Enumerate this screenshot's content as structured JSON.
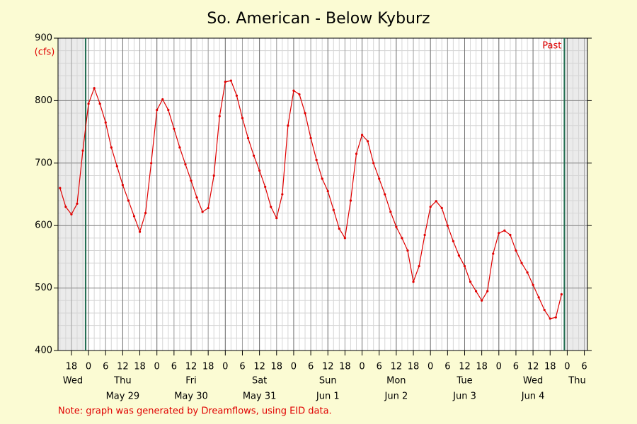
{
  "chart_data": {
    "type": "line",
    "title": "So. American - Below Kyburz",
    "y_unit": "(cfs)",
    "note": "Note: graph was generated by Dreamflows, using EID data.",
    "marker_label": "Past",
    "markers": [
      -1,
      167
    ],
    "color": "#e00000",
    "marker_color": "#1e6b4e",
    "grid": true,
    "x_minor_step": 2,
    "y_minor_step": 20,
    "xlim": [
      -10.7,
      175.1
    ],
    "ylim": [
      400,
      900
    ],
    "yticks": [
      400,
      500,
      600,
      700,
      800,
      900
    ],
    "xticks": [
      {
        "value": -6,
        "label": "18"
      },
      {
        "value": 0,
        "label": "0"
      },
      {
        "value": 6,
        "label": "6"
      },
      {
        "value": 12,
        "label": "12"
      },
      {
        "value": 18,
        "label": "18"
      },
      {
        "value": 24,
        "label": "0"
      },
      {
        "value": 30,
        "label": "6"
      },
      {
        "value": 36,
        "label": "12"
      },
      {
        "value": 42,
        "label": "18"
      },
      {
        "value": 48,
        "label": "0"
      },
      {
        "value": 54,
        "label": "6"
      },
      {
        "value": 60,
        "label": "12"
      },
      {
        "value": 66,
        "label": "18"
      },
      {
        "value": 72,
        "label": "0"
      },
      {
        "value": 78,
        "label": "6"
      },
      {
        "value": 84,
        "label": "12"
      },
      {
        "value": 90,
        "label": "18"
      },
      {
        "value": 96,
        "label": "0"
      },
      {
        "value": 102,
        "label": "6"
      },
      {
        "value": 108,
        "label": "12"
      },
      {
        "value": 114,
        "label": "18"
      },
      {
        "value": 120,
        "label": "0"
      },
      {
        "value": 126,
        "label": "6"
      },
      {
        "value": 132,
        "label": "12"
      },
      {
        "value": 138,
        "label": "18"
      },
      {
        "value": 144,
        "label": "0"
      },
      {
        "value": 150,
        "label": "6"
      },
      {
        "value": 156,
        "label": "12"
      },
      {
        "value": 162,
        "label": "18"
      },
      {
        "value": 168,
        "label": "0"
      },
      {
        "value": 174,
        "label": "6"
      }
    ],
    "day_labels": [
      {
        "value": -5.5,
        "label": "Wed"
      },
      {
        "value": 12,
        "label": "Thu",
        "date": "May 29"
      },
      {
        "value": 36,
        "label": "Fri",
        "date": "May 30"
      },
      {
        "value": 60,
        "label": "Sat",
        "date": "May 31"
      },
      {
        "value": 84,
        "label": "Sun",
        "date": "Jun 1"
      },
      {
        "value": 108,
        "label": "Mon",
        "date": "Jun 2"
      },
      {
        "value": 132,
        "label": "Tue",
        "date": "Jun 3"
      },
      {
        "value": 156,
        "label": "Wed",
        "date": "Jun 4"
      },
      {
        "value": 171.5,
        "label": "Thu"
      }
    ],
    "x": [
      -10,
      -8,
      -6,
      -4,
      -2,
      0,
      2,
      4,
      6,
      8,
      10,
      12,
      14,
      16,
      18,
      20,
      22,
      24,
      26,
      28,
      30,
      32,
      34,
      36,
      38,
      40,
      42,
      44,
      46,
      48,
      50,
      52,
      54,
      56,
      58,
      60,
      62,
      64,
      66,
      68,
      70,
      72,
      74,
      76,
      78,
      80,
      82,
      84,
      86,
      88,
      90,
      92,
      94,
      96,
      98,
      100,
      102,
      104,
      106,
      108,
      110,
      112,
      114,
      116,
      118,
      120,
      122,
      124,
      126,
      128,
      130,
      132,
      134,
      136,
      138,
      140,
      142,
      144,
      146,
      148,
      150,
      152,
      154,
      156,
      158,
      160,
      162,
      164,
      166
    ],
    "values": [
      660,
      630,
      618,
      635,
      720,
      795,
      820,
      795,
      765,
      725,
      695,
      665,
      640,
      615,
      590,
      620,
      700,
      785,
      802,
      785,
      755,
      725,
      698,
      672,
      645,
      622,
      628,
      680,
      775,
      830,
      832,
      808,
      772,
      740,
      712,
      688,
      662,
      630,
      612,
      650,
      760,
      816,
      810,
      780,
      740,
      705,
      675,
      655,
      625,
      595,
      580,
      640,
      715,
      745,
      735,
      700,
      675,
      650,
      622,
      598,
      580,
      560,
      510,
      535,
      585,
      630,
      639,
      628,
      600,
      575,
      552,
      535,
      510,
      495,
      480,
      495,
      555,
      588,
      592,
      585,
      560,
      540,
      525,
      505,
      485,
      465,
      451,
      453,
      490
    ]
  }
}
